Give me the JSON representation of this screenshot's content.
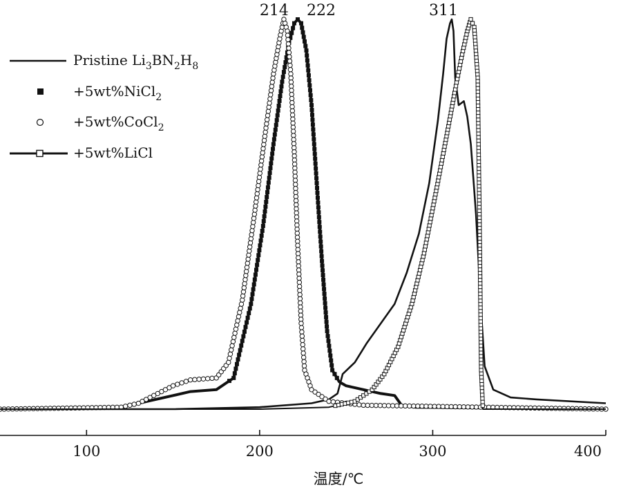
{
  "chart_data": {
    "type": "line",
    "title": "",
    "xlabel": "温度/℃",
    "ylabel": "",
    "xlim": [
      50,
      400
    ],
    "ylim": [
      0,
      1.0
    ],
    "grid": false,
    "x_ticks": [
      100,
      200,
      300,
      400
    ],
    "legend_position": "top-left",
    "peak_labels": [
      {
        "text": "214",
        "x": 214
      },
      {
        "text": "222",
        "x": 222
      },
      {
        "text": "311",
        "x": 311
      }
    ],
    "series": [
      {
        "name": "Pristine Li3BN2H8",
        "legend_main": "Pristine Li",
        "legend_parts": [
          "3",
          "BN",
          "2",
          "H",
          "8"
        ],
        "marker": "none",
        "points": [
          [
            50,
            0.0
          ],
          [
            150,
            0.0
          ],
          [
            200,
            0.005
          ],
          [
            230,
            0.015
          ],
          [
            240,
            0.025
          ],
          [
            245,
            0.04
          ],
          [
            248,
            0.09
          ],
          [
            255,
            0.12
          ],
          [
            262,
            0.17
          ],
          [
            270,
            0.22
          ],
          [
            278,
            0.27
          ],
          [
            285,
            0.35
          ],
          [
            292,
            0.45
          ],
          [
            298,
            0.58
          ],
          [
            303,
            0.74
          ],
          [
            306,
            0.86
          ],
          [
            308,
            0.95
          ],
          [
            310,
            0.99
          ],
          [
            311,
            1.0
          ],
          [
            312,
            0.97
          ],
          [
            313,
            0.85
          ],
          [
            315,
            0.78
          ],
          [
            318,
            0.79
          ],
          [
            320,
            0.75
          ],
          [
            322,
            0.68
          ],
          [
            325,
            0.5
          ],
          [
            328,
            0.25
          ],
          [
            330,
            0.11
          ],
          [
            335,
            0.05
          ],
          [
            345,
            0.03
          ],
          [
            360,
            0.025
          ],
          [
            400,
            0.015
          ]
        ]
      },
      {
        "name": "+5wt%NiCl2",
        "legend_main": "+5wt%NiCl",
        "legend_parts": [
          "2"
        ],
        "marker": "square-filled",
        "points": [
          [
            50,
            0.0
          ],
          [
            120,
            0.005
          ],
          [
            130,
            0.015
          ],
          [
            150,
            0.035
          ],
          [
            160,
            0.045
          ],
          [
            175,
            0.05
          ],
          [
            185,
            0.08
          ],
          [
            195,
            0.27
          ],
          [
            202,
            0.47
          ],
          [
            208,
            0.68
          ],
          [
            213,
            0.84
          ],
          [
            217,
            0.94
          ],
          [
            220,
            0.99
          ],
          [
            222,
            1.0
          ],
          [
            224,
            0.99
          ],
          [
            227,
            0.92
          ],
          [
            230,
            0.78
          ],
          [
            233,
            0.58
          ],
          [
            236,
            0.38
          ],
          [
            239,
            0.2
          ],
          [
            242,
            0.1
          ],
          [
            246,
            0.07
          ],
          [
            250,
            0.06
          ],
          [
            260,
            0.05
          ],
          [
            270,
            0.04
          ],
          [
            278,
            0.035
          ],
          [
            282,
            0.01
          ],
          [
            290,
            0.005
          ],
          [
            400,
            0.0
          ]
        ]
      },
      {
        "name": "+5wt%CoCl2",
        "legend_main": "+5wt%CoCl",
        "legend_parts": [
          "2"
        ],
        "marker": "circle-open",
        "points": [
          [
            50,
            0.0
          ],
          [
            120,
            0.005
          ],
          [
            130,
            0.015
          ],
          [
            150,
            0.06
          ],
          [
            160,
            0.075
          ],
          [
            175,
            0.08
          ],
          [
            182,
            0.12
          ],
          [
            190,
            0.28
          ],
          [
            197,
            0.5
          ],
          [
            203,
            0.7
          ],
          [
            208,
            0.86
          ],
          [
            212,
            0.96
          ],
          [
            214,
            1.0
          ],
          [
            216,
            0.97
          ],
          [
            218,
            0.86
          ],
          [
            220,
            0.66
          ],
          [
            222,
            0.42
          ],
          [
            224,
            0.22
          ],
          [
            226,
            0.1
          ],
          [
            230,
            0.05
          ],
          [
            240,
            0.02
          ],
          [
            260,
            0.01
          ],
          [
            400,
            0.0
          ]
        ]
      },
      {
        "name": "+5wt%LiCl",
        "legend_main": "+5wt%LiCl",
        "legend_parts": [],
        "marker": "square-open",
        "points": [
          [
            50,
            0.0
          ],
          [
            200,
            0.0
          ],
          [
            240,
            0.005
          ],
          [
            255,
            0.02
          ],
          [
            265,
            0.05
          ],
          [
            272,
            0.09
          ],
          [
            280,
            0.16
          ],
          [
            288,
            0.27
          ],
          [
            295,
            0.4
          ],
          [
            302,
            0.56
          ],
          [
            308,
            0.7
          ],
          [
            313,
            0.82
          ],
          [
            317,
            0.91
          ],
          [
            320,
            0.97
          ],
          [
            322,
            1.0
          ],
          [
            324,
            0.98
          ],
          [
            326,
            0.85
          ],
          [
            327,
            0.5
          ],
          [
            328,
            0.1
          ],
          [
            329,
            0.0
          ],
          [
            400,
            0.0
          ]
        ]
      }
    ]
  }
}
